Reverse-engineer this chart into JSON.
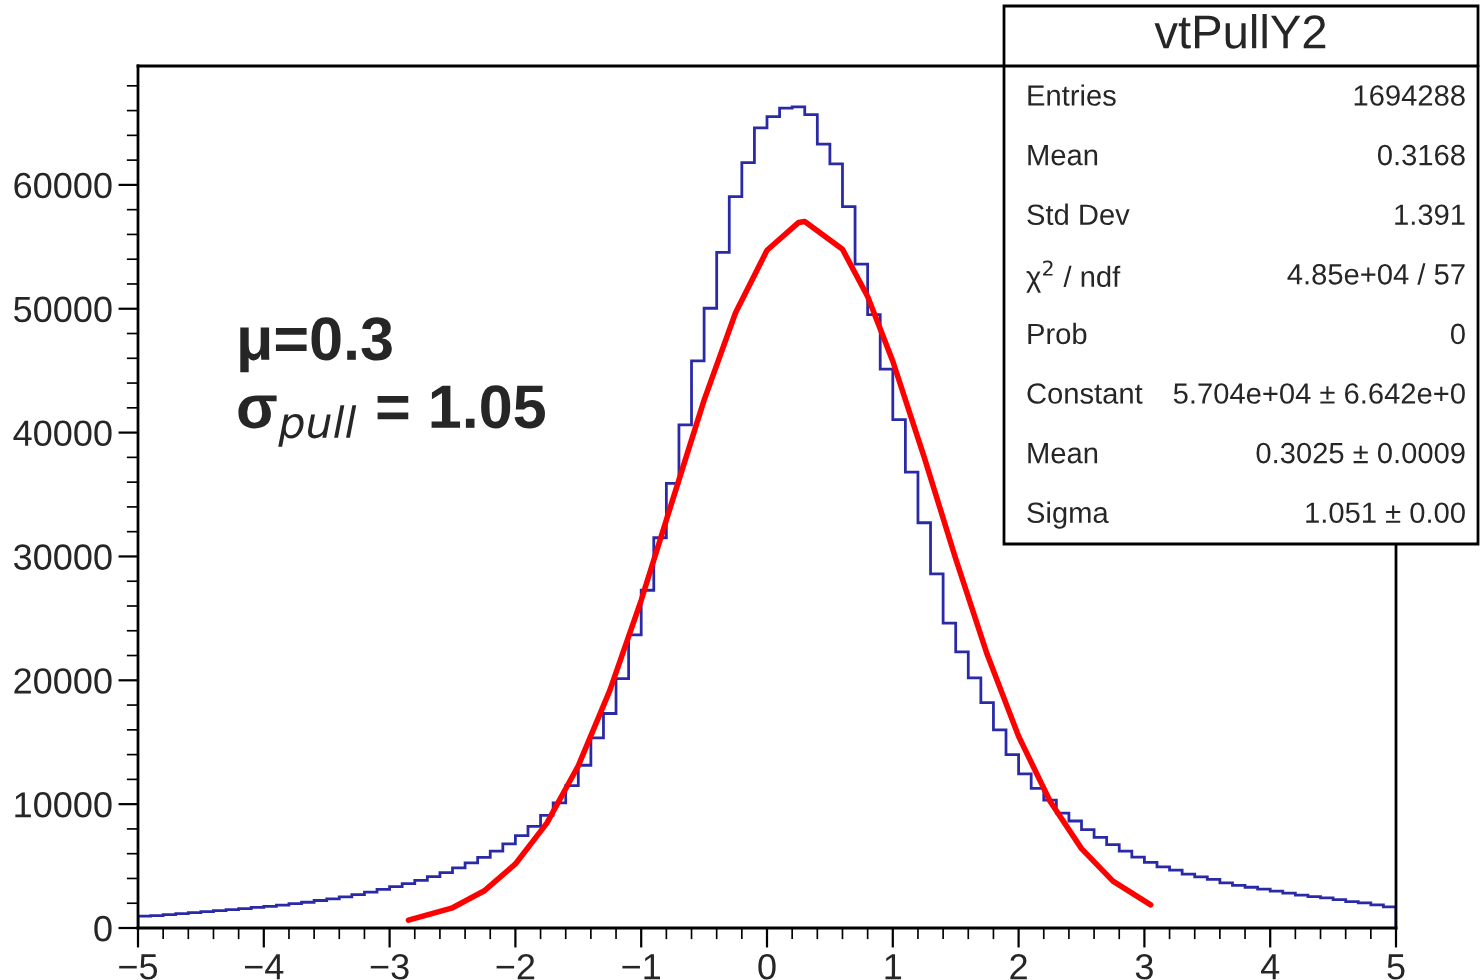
{
  "chart_data": {
    "type": "histogram",
    "title": "vtPullY2",
    "bins": [
      -5.0,
      -4.9,
      -4.8,
      -4.7,
      -4.6,
      -4.5,
      -4.4,
      -4.3,
      -4.2,
      -4.1,
      -4.0,
      -3.9,
      -3.8,
      -3.7,
      -3.6,
      -3.5,
      -3.4,
      -3.3,
      -3.2,
      -3.1,
      -3.0,
      -2.9,
      -2.8,
      -2.7,
      -2.6,
      -2.5,
      -2.4,
      -2.3,
      -2.2,
      -2.1,
      -2.0,
      -1.9,
      -1.8,
      -1.7,
      -1.6,
      -1.5,
      -1.4,
      -1.3,
      -1.2,
      -1.1,
      -1.0,
      -0.9,
      -0.8,
      -0.7,
      -0.6,
      -0.5,
      -0.4,
      -0.3,
      -0.2,
      -0.1,
      0.0,
      0.1,
      0.2,
      0.3,
      0.4,
      0.5,
      0.6,
      0.7,
      0.8,
      0.9,
      1.0,
      1.1,
      1.2,
      1.3,
      1.4,
      1.5,
      1.6,
      1.7,
      1.8,
      1.9,
      2.0,
      2.1,
      2.2,
      2.3,
      2.4,
      2.5,
      2.6,
      2.7,
      2.8,
      2.9,
      3.0,
      3.1,
      3.2,
      3.3,
      3.4,
      3.5,
      3.6,
      3.7,
      3.8,
      3.9,
      4.0,
      4.1,
      4.2,
      4.3,
      4.4,
      4.5,
      4.6,
      4.7,
      4.8,
      4.9,
      5.0
    ],
    "values": [
      950,
      1000,
      1080,
      1160,
      1240,
      1320,
      1400,
      1480,
      1570,
      1660,
      1750,
      1850,
      1960,
      2080,
      2220,
      2360,
      2520,
      2700,
      2900,
      3110,
      3340,
      3580,
      3850,
      4150,
      4480,
      4850,
      5250,
      5700,
      6200,
      6800,
      7450,
      8200,
      9100,
      10100,
      11500,
      13140,
      15360,
      17320,
      20130,
      23670,
      27270,
      31510,
      35900,
      40620,
      45800,
      50040,
      54550,
      59050,
      61800,
      64600,
      65510,
      66190,
      66300,
      65670,
      63290,
      61700,
      58250,
      53600,
      49520,
      45120,
      41050,
      36810,
      32720,
      28600,
      24620,
      22300,
      20200,
      18200,
      16000,
      14000,
      12450,
      11280,
      10330,
      9280,
      8640,
      7950,
      7310,
      6730,
      6200,
      5720,
      5300,
      4930,
      4670,
      4350,
      4130,
      3920,
      3650,
      3450,
      3290,
      3130,
      2970,
      2810,
      2650,
      2540,
      2440,
      2290,
      2130,
      2020,
      1860,
      1700
    ],
    "color": "#2a2aa8",
    "series": [
      {
        "type": "line",
        "color": "#ff0000",
        "x": [
          -2.85,
          -2.5,
          -2.25,
          -2.0,
          -1.75,
          -1.5,
          -1.25,
          -1.0,
          -0.75,
          -0.5,
          -0.25,
          0.0,
          0.25,
          0.3,
          0.6,
          0.8,
          1.0,
          1.25,
          1.5,
          1.75,
          2.0,
          2.25,
          2.5,
          2.75,
          3.05
        ],
        "values": [
          633,
          1630,
          2985,
          5170,
          8470,
          13100,
          19170,
          26460,
          34570,
          42620,
          49680,
          54720,
          56960,
          57040,
          54800,
          50990,
          45760,
          38000,
          29810,
          22100,
          15480,
          10240,
          6410,
          3790,
          1870
        ]
      }
    ],
    "xlim": [
      -5,
      5
    ],
    "xticks": [
      {
        "value": -5,
        "label": "−5"
      },
      {
        "value": -4,
        "label": "−4"
      },
      {
        "value": -3,
        "label": "−3"
      },
      {
        "value": -2,
        "label": "−2"
      },
      {
        "value": -1,
        "label": "−1"
      },
      0,
      1,
      2,
      3,
      4,
      5
    ],
    "ylim": [
      0,
      69600
    ],
    "yticks": [
      0,
      10000,
      20000,
      30000,
      40000,
      50000,
      60000
    ],
    "grid": false,
    "annotations": [
      "μ=0.3",
      "σ$_{pull}$ = 1.05",
      "Entries",
      "1694288",
      "Mean",
      "0.3168",
      "Std Dev",
      "1.391",
      "χ$^{2}$ / ndf",
      "4.85e+04 / 57",
      "Prob",
      "0",
      "Constant",
      "5.704e+04 ± 6.642e+0",
      "Mean",
      "0.3025 ± 0.0009",
      "Sigma",
      "1.051 ± 0.00"
    ]
  }
}
